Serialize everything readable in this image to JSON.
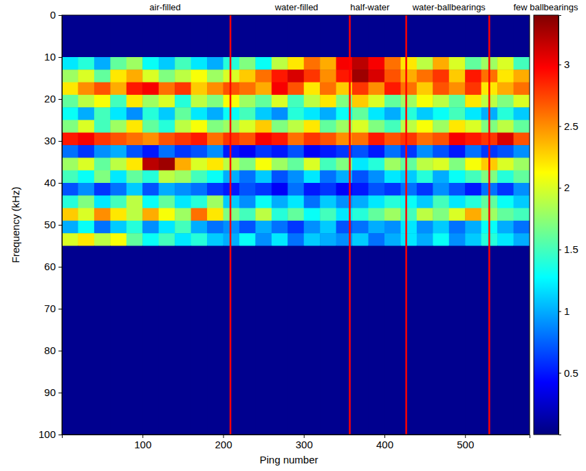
{
  "chart_data": {
    "type": "heatmap",
    "xlabel": "Ping number",
    "ylabel": "Frequency (kHz)",
    "xlim": [
      0,
      580
    ],
    "xticks": [
      100,
      200,
      300,
      400,
      500
    ],
    "ylim": [
      100,
      0
    ],
    "yticks": [
      0,
      10,
      20,
      30,
      40,
      50,
      60,
      70,
      80,
      90,
      100
    ],
    "zlim": [
      0,
      3.4
    ],
    "zticks": [
      0.5,
      1,
      1.5,
      2,
      2.5,
      3
    ],
    "x_edges": [
      0,
      20,
      40,
      60,
      80,
      100,
      120,
      140,
      160,
      180,
      200,
      220,
      240,
      260,
      280,
      300,
      320,
      340,
      360,
      380,
      400,
      420,
      440,
      460,
      480,
      500,
      520,
      540,
      560,
      580
    ],
    "y_edges": [
      0,
      10,
      13,
      16,
      19,
      22,
      25,
      28,
      31,
      34,
      37,
      40,
      43,
      46,
      49,
      52,
      55,
      100
    ],
    "cells": [
      [
        0.05,
        0.05,
        0.05,
        0.05,
        0.05,
        0.05,
        0.05,
        0.05,
        0.05,
        0.05,
        0.05,
        0.05,
        0.05,
        0.05,
        0.05,
        0.05,
        0.05,
        0.05,
        0.05,
        0.05,
        0.05,
        0.05,
        0.05,
        0.05,
        0.05,
        0.05,
        0.05,
        0.05,
        0.05
      ],
      [
        1.2,
        1.4,
        1.0,
        1.6,
        1.8,
        1.3,
        1.1,
        1.5,
        1.2,
        1.0,
        1.4,
        1.7,
        1.3,
        1.9,
        2.2,
        2.6,
        2.4,
        3.0,
        3.2,
        3.0,
        2.6,
        2.2,
        1.9,
        2.4,
        2.0,
        1.6,
        1.8,
        2.0,
        1.5
      ],
      [
        1.8,
        2.0,
        1.6,
        2.2,
        2.4,
        2.0,
        1.7,
        1.9,
        2.1,
        1.8,
        2.0,
        2.3,
        2.6,
        2.9,
        3.1,
        2.8,
        2.5,
        2.9,
        3.3,
        3.1,
        2.7,
        2.4,
        2.6,
        2.8,
        2.3,
        2.9,
        2.6,
        2.2,
        2.4
      ],
      [
        2.2,
        2.5,
        2.7,
        2.4,
        2.9,
        3.0,
        2.6,
        2.8,
        2.3,
        2.5,
        2.7,
        2.6,
        2.4,
        3.0,
        2.7,
        2.2,
        2.6,
        2.3,
        2.8,
        2.5,
        2.9,
        2.6,
        2.3,
        2.7,
        2.5,
        2.8,
        2.2,
        2.4,
        2.6
      ],
      [
        1.6,
        1.9,
        2.1,
        1.5,
        2.2,
        1.8,
        2.0,
        1.4,
        1.9,
        1.7,
        2.1,
        1.8,
        1.6,
        2.0,
        1.5,
        1.9,
        2.2,
        1.7,
        2.3,
        2.0,
        1.6,
        1.8,
        2.1,
        1.9,
        1.6,
        2.2,
        1.9,
        1.7,
        2.0
      ],
      [
        1.3,
        1.0,
        1.5,
        1.2,
        0.9,
        1.4,
        1.1,
        1.6,
        1.2,
        1.0,
        1.3,
        1.5,
        1.1,
        0.9,
        1.4,
        1.2,
        1.0,
        1.3,
        1.6,
        1.2,
        1.0,
        1.4,
        1.1,
        1.3,
        1.5,
        1.2,
        1.0,
        1.4,
        1.1
      ],
      [
        1.7,
        2.0,
        1.5,
        1.8,
        2.2,
        1.6,
        1.4,
        1.9,
        2.1,
        1.7,
        1.8,
        2.0,
        2.3,
        1.7,
        1.9,
        2.2,
        1.6,
        1.8,
        2.0,
        1.7,
        1.5,
        1.9,
        2.1,
        1.8,
        2.2,
        2.0,
        1.7,
        1.9,
        1.6
      ],
      [
        2.9,
        3.0,
        2.8,
        2.7,
        2.6,
        2.5,
        2.7,
        2.8,
        2.9,
        2.6,
        2.8,
        2.7,
        3.0,
        2.9,
        2.6,
        2.8,
        2.7,
        2.5,
        2.6,
        2.9,
        2.7,
        2.8,
        2.6,
        2.7,
        3.0,
        2.9,
        2.8,
        3.1,
        2.7
      ],
      [
        0.8,
        0.6,
        0.9,
        1.0,
        0.7,
        0.5,
        0.8,
        0.6,
        0.7,
        0.9,
        0.5,
        0.4,
        0.6,
        0.5,
        0.7,
        0.4,
        0.5,
        0.6,
        0.7,
        0.5,
        0.8,
        0.6,
        0.9,
        0.7,
        0.5,
        0.8,
        0.6,
        0.7,
        0.9
      ],
      [
        1.8,
        2.0,
        1.6,
        1.9,
        2.2,
        3.2,
        3.3,
        2.4,
        2.0,
        2.2,
        1.9,
        1.7,
        2.1,
        1.8,
        1.6,
        2.0,
        1.5,
        1.7,
        1.2,
        1.4,
        1.8,
        1.6,
        1.9,
        2.0,
        1.7,
        2.1,
        2.3,
        2.0,
        1.8
      ],
      [
        1.5,
        1.3,
        1.7,
        1.2,
        1.6,
        1.4,
        1.9,
        1.8,
        1.5,
        1.3,
        1.0,
        0.8,
        1.1,
        0.7,
        0.9,
        1.2,
        0.8,
        1.0,
        0.7,
        0.9,
        1.2,
        1.1,
        1.4,
        1.0,
        1.3,
        1.5,
        1.7,
        1.4,
        1.6
      ],
      [
        0.7,
        0.9,
        0.6,
        0.8,
        1.1,
        0.7,
        1.0,
        0.9,
        0.8,
        0.6,
        0.5,
        0.7,
        0.6,
        0.4,
        0.8,
        0.5,
        0.6,
        0.4,
        0.5,
        0.7,
        0.6,
        0.8,
        0.6,
        0.9,
        0.7,
        0.5,
        0.8,
        0.6,
        0.9
      ],
      [
        1.4,
        1.7,
        1.2,
        1.5,
        1.9,
        1.3,
        1.6,
        1.2,
        1.4,
        1.8,
        1.1,
        0.9,
        1.3,
        1.0,
        1.2,
        0.8,
        1.1,
        0.9,
        1.0,
        1.2,
        1.4,
        1.3,
        1.1,
        1.5,
        1.2,
        1.4,
        1.6,
        1.3,
        1.1
      ],
      [
        2.3,
        2.0,
        2.5,
        2.2,
        1.9,
        2.4,
        2.1,
        1.8,
        2.6,
        2.2,
        1.7,
        1.5,
        1.9,
        1.4,
        1.6,
        1.3,
        1.5,
        1.2,
        1.4,
        1.6,
        1.8,
        1.5,
        1.9,
        1.7,
        2.0,
        2.4,
        1.8,
        1.6,
        1.5
      ],
      [
        1.0,
        1.3,
        0.8,
        1.1,
        1.4,
        0.9,
        1.2,
        1.5,
        1.0,
        0.8,
        0.9,
        0.7,
        1.0,
        0.8,
        0.6,
        0.9,
        1.1,
        0.7,
        0.8,
        1.0,
        0.9,
        1.2,
        0.9,
        1.1,
        0.8,
        1.0,
        1.3,
        1.0,
        0.8
      ],
      [
        2.0,
        2.2,
        1.9,
        2.1,
        1.6,
        1.3,
        1.5,
        1.2,
        1.4,
        1.1,
        1.0,
        1.3,
        0.9,
        1.2,
        0.8,
        1.1,
        1.0,
        0.9,
        1.1,
        0.8,
        1.0,
        1.2,
        1.0,
        1.3,
        0.9,
        1.1,
        1.4,
        1.2,
        1.0
      ],
      [
        0.05,
        0.05,
        0.05,
        0.05,
        0.05,
        0.05,
        0.05,
        0.05,
        0.05,
        0.05,
        0.05,
        0.05,
        0.05,
        0.05,
        0.05,
        0.05,
        0.05,
        0.05,
        0.05,
        0.05,
        0.05,
        0.05,
        0.05,
        0.05,
        0.05,
        0.05,
        0.05,
        0.05,
        0.05
      ]
    ],
    "vlines": {
      "x": [
        209,
        357,
        427,
        530
      ],
      "color": "#ff0000"
    },
    "annotations": [
      {
        "text": "air-filled",
        "x": 128
      },
      {
        "text": "water-filled",
        "x": 291
      },
      {
        "text": "half-water",
        "x": 382
      },
      {
        "text": "water-ballbearings",
        "x": 480
      },
      {
        "text": "few ballbearings",
        "x": 600
      }
    ]
  }
}
